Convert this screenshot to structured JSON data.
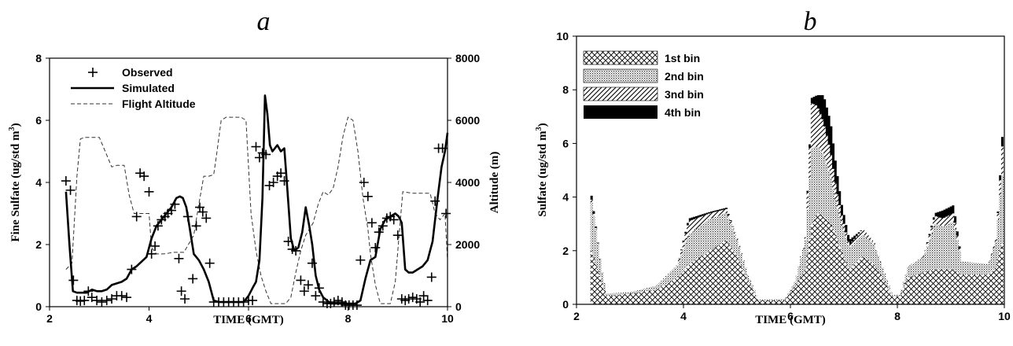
{
  "chart_data": [
    {
      "panel": "a",
      "type": "line",
      "xlabel": "TIME (GMT)",
      "ylabel": "Fine Sulfate (ug/std m3)",
      "y2label": "Altitude (m)",
      "xlim": [
        2,
        10
      ],
      "ylim": [
        0,
        8
      ],
      "y2lim": [
        0,
        8000
      ],
      "xticks": [
        "2",
        "4",
        "6",
        "8",
        "10"
      ],
      "yticks": [
        "0",
        "2",
        "4",
        "6",
        "8"
      ],
      "y2ticks": [
        "0",
        "2000",
        "4000",
        "6000",
        "8000"
      ],
      "legend_position": "top-left",
      "series": [
        {
          "name": "Observed",
          "marker": "plus",
          "x": [
            2.33,
            2.42,
            2.48,
            2.55,
            2.62,
            2.7,
            2.78,
            2.85,
            2.95,
            3.05,
            3.15,
            3.25,
            3.35,
            3.45,
            3.55,
            3.65,
            3.75,
            3.82,
            3.9,
            4.0,
            4.05,
            4.12,
            4.18,
            4.25,
            4.32,
            4.38,
            4.45,
            4.52,
            4.6,
            4.65,
            4.72,
            4.78,
            4.88,
            4.95,
            5.02,
            5.08,
            5.15,
            5.22,
            5.3,
            5.4,
            5.5,
            5.6,
            5.7,
            5.8,
            5.9,
            6.0,
            6.08,
            6.15,
            6.22,
            6.28,
            6.35,
            6.42,
            6.5,
            6.58,
            6.65,
            6.72,
            6.8,
            6.88,
            6.95,
            7.05,
            7.12,
            7.2,
            7.28,
            7.35,
            7.42,
            7.5,
            7.58,
            7.65,
            7.72,
            7.8,
            7.88,
            7.95,
            8.02,
            8.1,
            8.18,
            8.25,
            8.32,
            8.4,
            8.48,
            8.55,
            8.62,
            8.7,
            8.78,
            8.85,
            8.92,
            9.0,
            9.08,
            9.15,
            9.22,
            9.3,
            9.38,
            9.45,
            9.52,
            9.6,
            9.68,
            9.75,
            9.82,
            9.9,
            9.97
          ],
          "y": [
            4.05,
            3.75,
            0.85,
            0.2,
            0.18,
            0.2,
            0.5,
            0.3,
            0.2,
            0.15,
            0.2,
            0.25,
            0.35,
            0.35,
            0.3,
            1.2,
            2.9,
            4.3,
            4.2,
            3.7,
            1.7,
            1.95,
            2.6,
            2.8,
            2.9,
            3.0,
            3.1,
            3.3,
            1.55,
            0.5,
            0.25,
            2.9,
            0.9,
            2.6,
            3.2,
            3.05,
            2.85,
            1.4,
            0.15,
            0.15,
            0.15,
            0.15,
            0.15,
            0.15,
            0.15,
            0.2,
            0.2,
            5.15,
            4.8,
            4.95,
            4.9,
            3.9,
            4.0,
            4.2,
            4.3,
            4.05,
            2.1,
            1.85,
            1.8,
            0.85,
            0.5,
            0.7,
            1.4,
            0.35,
            0.6,
            0.15,
            0.1,
            0.1,
            0.15,
            0.2,
            0.15,
            0.05,
            0.05,
            0.05,
            0.05,
            1.5,
            4.0,
            3.55,
            2.7,
            1.9,
            2.4,
            2.6,
            2.85,
            2.9,
            2.8,
            2.3,
            0.25,
            0.2,
            0.25,
            0.3,
            0.25,
            0.15,
            0.35,
            0.2,
            0.95,
            3.4,
            5.1,
            5.1,
            3.0
          ]
        },
        {
          "name": "Simulated",
          "line": "solid",
          "x": [
            2.33,
            2.4,
            2.47,
            2.55,
            2.65,
            2.75,
            2.85,
            2.95,
            3.05,
            3.15,
            3.25,
            3.35,
            3.45,
            3.55,
            3.65,
            3.75,
            3.85,
            3.95,
            4.05,
            4.15,
            4.25,
            4.35,
            4.45,
            4.55,
            4.62,
            4.68,
            4.75,
            4.82,
            4.9,
            5.0,
            5.1,
            5.2,
            5.3,
            5.4,
            5.5,
            5.6,
            5.7,
            5.8,
            5.9,
            6.0,
            6.08,
            6.15,
            6.22,
            6.28,
            6.33,
            6.38,
            6.43,
            6.48,
            6.53,
            6.58,
            6.65,
            6.72,
            6.78,
            6.85,
            6.92,
            7.0,
            7.08,
            7.15,
            7.22,
            7.28,
            7.35,
            7.42,
            7.5,
            7.58,
            7.65,
            7.75,
            7.85,
            7.95,
            8.05,
            8.15,
            8.25,
            8.35,
            8.45,
            8.55,
            8.65,
            8.75,
            8.85,
            8.95,
            9.02,
            9.08,
            9.15,
            9.22,
            9.3,
            9.4,
            9.5,
            9.6,
            9.7,
            9.8,
            9.88,
            9.95,
            10.0
          ],
          "y": [
            3.7,
            2.0,
            0.5,
            0.45,
            0.45,
            0.45,
            0.55,
            0.5,
            0.5,
            0.55,
            0.7,
            0.75,
            0.8,
            0.9,
            1.2,
            1.3,
            1.45,
            1.6,
            2.2,
            2.6,
            2.8,
            3.0,
            3.2,
            3.5,
            3.55,
            3.5,
            3.2,
            2.5,
            1.7,
            1.5,
            1.2,
            0.8,
            0.2,
            0.15,
            0.15,
            0.15,
            0.15,
            0.15,
            0.15,
            0.35,
            0.6,
            0.8,
            1.5,
            3.5,
            6.8,
            6.2,
            5.2,
            5.0,
            5.1,
            5.2,
            5.0,
            5.1,
            3.8,
            2.2,
            1.8,
            1.9,
            2.4,
            3.2,
            2.6,
            2.0,
            1.0,
            0.55,
            0.3,
            0.2,
            0.1,
            0.1,
            0.1,
            0.1,
            0.1,
            0.1,
            0.2,
            0.9,
            1.5,
            1.6,
            2.5,
            2.8,
            2.9,
            3.0,
            2.9,
            2.7,
            1.2,
            1.1,
            1.1,
            1.2,
            1.3,
            1.5,
            2.1,
            3.5,
            4.5,
            5.0,
            5.6
          ]
        },
        {
          "name": "Flight Altitude",
          "line": "dashed",
          "axis": "y2",
          "x": [
            2.33,
            2.45,
            2.55,
            2.62,
            2.7,
            3.0,
            3.25,
            3.35,
            3.5,
            3.6,
            3.7,
            4.0,
            4.05,
            4.15,
            4.3,
            4.5,
            4.7,
            4.9,
            5.0,
            5.1,
            5.2,
            5.3,
            5.35,
            5.45,
            5.55,
            5.7,
            5.85,
            5.95,
            6.05,
            6.15,
            6.25,
            6.35,
            6.45,
            6.55,
            6.65,
            6.75,
            6.85,
            6.95,
            7.05,
            7.15,
            7.3,
            7.4,
            7.5,
            7.6,
            7.7,
            7.8,
            7.9,
            8.0,
            8.1,
            8.2,
            8.3,
            8.4,
            8.45,
            8.5,
            8.55,
            8.65,
            8.75,
            8.85,
            8.95,
            9.0,
            9.1,
            9.3,
            9.5,
            9.65,
            9.75,
            9.85,
            9.95,
            10.0
          ],
          "y": [
            1200,
            1400,
            4200,
            5400,
            5450,
            5450,
            4500,
            4550,
            4550,
            3600,
            3000,
            3000,
            1900,
            1700,
            1700,
            1750,
            1750,
            2300,
            3300,
            4200,
            4200,
            4250,
            4800,
            6000,
            6100,
            6100,
            6100,
            6000,
            3000,
            1800,
            1000,
            500,
            100,
            100,
            100,
            100,
            300,
            1100,
            1800,
            2300,
            2700,
            3300,
            3700,
            3600,
            3800,
            4500,
            5500,
            6100,
            6000,
            5000,
            3500,
            2500,
            1700,
            1200,
            700,
            100,
            100,
            100,
            800,
            1800,
            3700,
            3650,
            3650,
            3650,
            3000,
            2800,
            3000,
            1500
          ]
        }
      ]
    },
    {
      "panel": "b",
      "type": "bar",
      "stacked": true,
      "xlabel": "TIME (GMT)",
      "ylabel": "Sulfate (ug/std m3)",
      "xlim": [
        2,
        10
      ],
      "ylim": [
        0,
        10
      ],
      "xticks": [
        "2",
        "4",
        "6",
        "8",
        "10"
      ],
      "yticks": [
        "0",
        "2",
        "4",
        "6",
        "8",
        "10"
      ],
      "legend_position": "top-left",
      "series_names": [
        "1st bin",
        "2nd bin",
        "3nd bin",
        "4th bin"
      ],
      "keyframes": [
        {
          "x": 2.28,
          "v": [
            2.0,
            1.8,
            0.1,
            0.15
          ]
        },
        {
          "x": 2.36,
          "v": [
            1.5,
            1.3,
            0.05,
            0.05
          ]
        },
        {
          "x": 2.46,
          "v": [
            0.9,
            0.5,
            0,
            0
          ]
        },
        {
          "x": 2.56,
          "v": [
            0.3,
            0.1,
            0,
            0
          ]
        },
        {
          "x": 3.0,
          "v": [
            0.4,
            0.05,
            0,
            0
          ]
        },
        {
          "x": 3.5,
          "v": [
            0.55,
            0.15,
            0,
            0
          ]
        },
        {
          "x": 3.9,
          "v": [
            1.0,
            0.5,
            0.05,
            0
          ]
        },
        {
          "x": 4.1,
          "v": [
            1.5,
            1.1,
            0.5,
            0.1
          ]
        },
        {
          "x": 4.5,
          "v": [
            2.0,
            1.2,
            0.2,
            0.05
          ]
        },
        {
          "x": 4.8,
          "v": [
            2.4,
            1.0,
            0.15,
            0.05
          ]
        },
        {
          "x": 5.0,
          "v": [
            1.8,
            0.6,
            0.05,
            0
          ]
        },
        {
          "x": 5.2,
          "v": [
            0.9,
            0.2,
            0,
            0
          ]
        },
        {
          "x": 5.4,
          "v": [
            0.15,
            0.02,
            0,
            0
          ]
        },
        {
          "x": 5.9,
          "v": [
            0.15,
            0.05,
            0,
            0
          ]
        },
        {
          "x": 6.1,
          "v": [
            0.7,
            0.2,
            0,
            0
          ]
        },
        {
          "x": 6.28,
          "v": [
            1.3,
            1.1,
            0.1,
            0
          ]
        },
        {
          "x": 6.4,
          "v": [
            3.0,
            2.8,
            1.7,
            0.2
          ]
        },
        {
          "x": 6.5,
          "v": [
            3.4,
            2.5,
            1.5,
            0.4
          ]
        },
        {
          "x": 6.62,
          "v": [
            3.3,
            2.3,
            1.2,
            1.0
          ]
        },
        {
          "x": 6.75,
          "v": [
            3.0,
            1.8,
            0.9,
            1.1
          ]
        },
        {
          "x": 6.85,
          "v": [
            2.6,
            1.2,
            0.6,
            0.8
          ]
        },
        {
          "x": 6.95,
          "v": [
            2.0,
            1.0,
            0.4,
            0.4
          ]
        },
        {
          "x": 7.1,
          "v": [
            1.3,
            0.8,
            0.1,
            0.2
          ]
        },
        {
          "x": 7.35,
          "v": [
            1.8,
            0.8,
            0.2,
            0
          ]
        },
        {
          "x": 7.55,
          "v": [
            1.5,
            0.8,
            0.05,
            0
          ]
        },
        {
          "x": 7.75,
          "v": [
            0.9,
            0.3,
            0,
            0
          ]
        },
        {
          "x": 7.9,
          "v": [
            0.3,
            0.05,
            0,
            0
          ]
        },
        {
          "x": 8.05,
          "v": [
            0.3,
            0.05,
            0,
            0
          ]
        },
        {
          "x": 8.2,
          "v": [
            1.0,
            0.4,
            0,
            0
          ]
        },
        {
          "x": 8.5,
          "v": [
            1.2,
            0.6,
            0.05,
            0
          ]
        },
        {
          "x": 8.7,
          "v": [
            1.3,
            1.7,
            0.3,
            0.1
          ]
        },
        {
          "x": 8.85,
          "v": [
            1.3,
            1.6,
            0.3,
            0.3
          ]
        },
        {
          "x": 9.05,
          "v": [
            1.3,
            1.8,
            0.3,
            0.3
          ]
        },
        {
          "x": 9.2,
          "v": [
            1.1,
            0.5,
            0,
            0
          ]
        },
        {
          "x": 9.7,
          "v": [
            1.1,
            0.4,
            0,
            0
          ]
        },
        {
          "x": 9.85,
          "v": [
            1.4,
            1.0,
            0.1,
            0
          ]
        },
        {
          "x": 9.9,
          "v": [
            1.9,
            1.8,
            0.3,
            0.1
          ]
        },
        {
          "x": 9.97,
          "v": [
            2.3,
            2.7,
            1.2,
            0.4
          ]
        }
      ]
    }
  ],
  "panels": {
    "a": {
      "letter": "a",
      "xlabel": "TIME (GMT)",
      "ylabel": "Fine Sulfate (ug/std m",
      "ylabel_sup": "3",
      "ylabel_close": ")",
      "y2label": "Altitude (m)",
      "legend": [
        "Observed",
        "Simulated",
        "Flight Altitude"
      ]
    },
    "b": {
      "letter": "b",
      "xlabel": "TIME (GMT)",
      "ylabel": "Sulfate (ug/std m",
      "ylabel_sup": "3",
      "ylabel_close": ")",
      "legend": [
        "1st bin",
        "2nd bin",
        "3nd bin",
        "4th bin"
      ]
    }
  },
  "colors": {
    "ink": "#000000",
    "background": "#ffffff",
    "dash": "#333333"
  }
}
